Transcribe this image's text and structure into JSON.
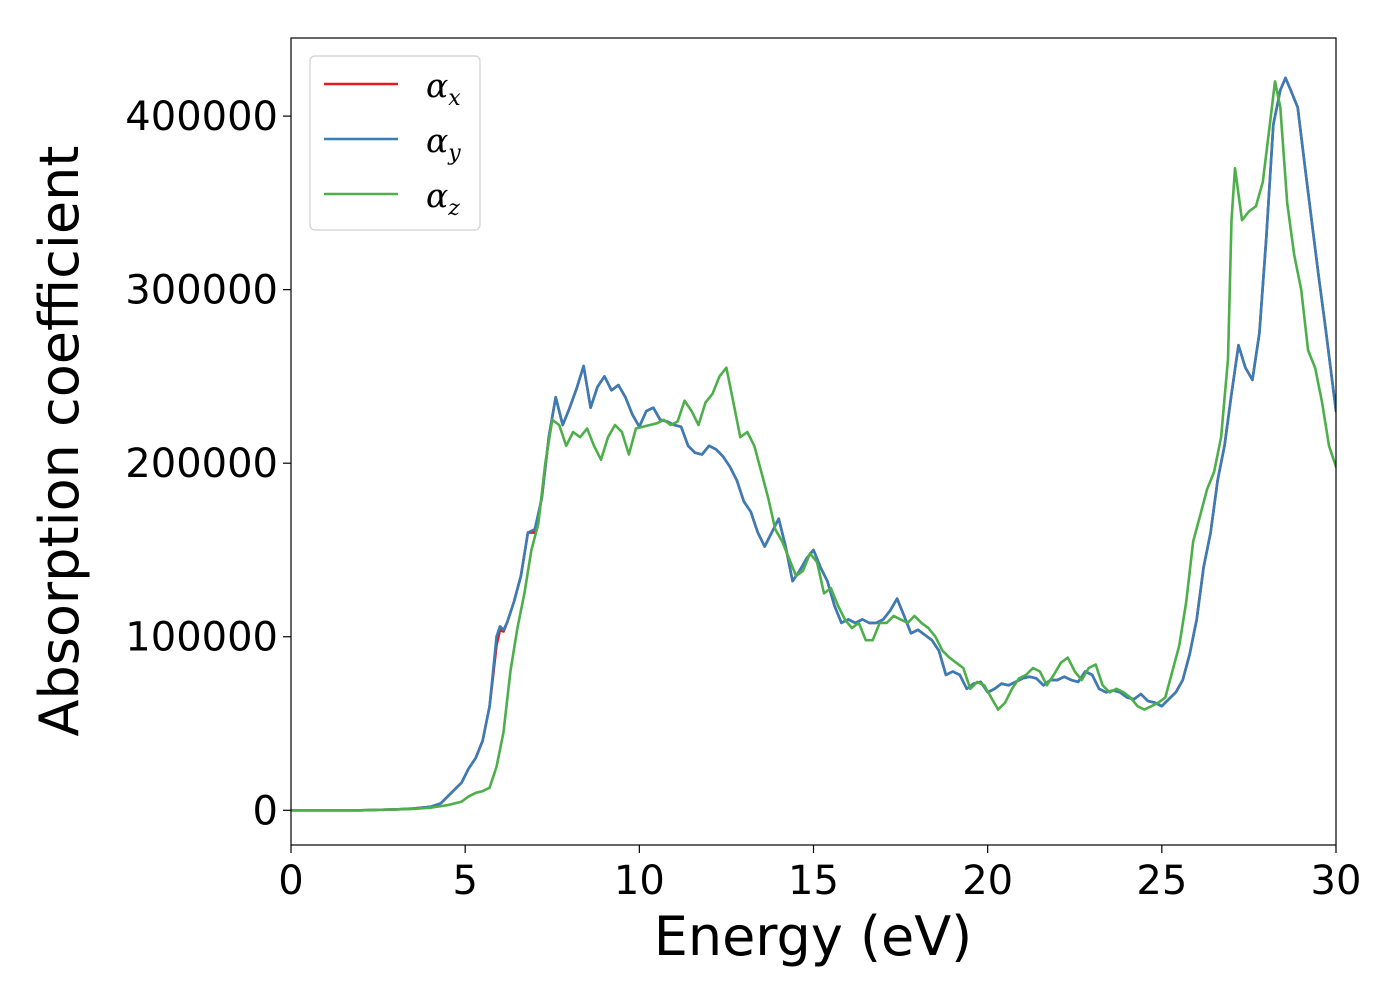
{
  "chart_data": {
    "type": "line",
    "xlabel": "Energy (eV)",
    "ylabel": "Absorption coefficient",
    "xlim": [
      0,
      30
    ],
    "ylim": [
      -20000,
      445000
    ],
    "xticks": [
      0,
      5,
      10,
      15,
      20,
      25,
      30
    ],
    "yticks": [
      0,
      100000,
      200000,
      300000,
      400000
    ],
    "grid": false,
    "legend_position": "top-left",
    "series": [
      {
        "name": "αx",
        "legend_base": "α",
        "legend_sub": "x",
        "color": "#e41a1c",
        "x": [
          0,
          1,
          2,
          3,
          3.5,
          4,
          4.3,
          4.6,
          4.9,
          5.1,
          5.3,
          5.5,
          5.7,
          5.9,
          6.0,
          6.1,
          6.2,
          6.4,
          6.6,
          6.8,
          7.0,
          7.2,
          7.4,
          7.6,
          7.8,
          8.0,
          8.2,
          8.4,
          8.6,
          8.8,
          9.0,
          9.2,
          9.4,
          9.6,
          9.8,
          10.0,
          10.2,
          10.4,
          10.6,
          10.8,
          11.0,
          11.2,
          11.4,
          11.6,
          11.8,
          12.0,
          12.2,
          12.4,
          12.6,
          12.8,
          13.0,
          13.2,
          13.4,
          13.6,
          13.8,
          14.0,
          14.2,
          14.4,
          14.6,
          14.8,
          15.0,
          15.2,
          15.4,
          15.6,
          15.8,
          16.0,
          16.2,
          16.4,
          16.6,
          16.8,
          17.0,
          17.2,
          17.4,
          17.6,
          17.8,
          18.0,
          18.2,
          18.4,
          18.6,
          18.8,
          19.0,
          19.2,
          19.4,
          19.6,
          19.8,
          20.0,
          20.2,
          20.4,
          20.6,
          20.8,
          21.0,
          21.2,
          21.4,
          21.6,
          21.8,
          22.0,
          22.2,
          22.4,
          22.6,
          22.8,
          23.0,
          23.2,
          23.4,
          23.6,
          23.8,
          24.0,
          24.2,
          24.4,
          24.6,
          24.8,
          25.0,
          25.2,
          25.4,
          25.6,
          25.8,
          26.0,
          26.2,
          26.4,
          26.6,
          26.8,
          27.0,
          27.2,
          27.4,
          27.6,
          27.8,
          28.0,
          28.2,
          28.4,
          28.55,
          28.7,
          28.9,
          29.1,
          29.3,
          29.5,
          29.7,
          30.0
        ],
        "y": [
          0,
          0,
          0,
          500,
          1000,
          2000,
          4000,
          10000,
          16000,
          24000,
          30000,
          40000,
          60000,
          95000,
          104000,
          103000,
          108000,
          120000,
          135000,
          160000,
          160000,
          180000,
          215000,
          238000,
          222000,
          232000,
          243000,
          256000,
          232000,
          244000,
          250000,
          242000,
          245000,
          238000,
          228000,
          221000,
          230000,
          232000,
          225000,
          224000,
          222000,
          221000,
          210000,
          206000,
          205000,
          210000,
          208000,
          204000,
          198000,
          190000,
          178000,
          172000,
          160000,
          152000,
          160000,
          168000,
          152000,
          132000,
          138000,
          145000,
          150000,
          140000,
          132000,
          118000,
          108000,
          110000,
          108000,
          110000,
          108000,
          108000,
          110000,
          115000,
          122000,
          112000,
          102000,
          104000,
          101000,
          98000,
          92000,
          78000,
          80000,
          78000,
          70000,
          73000,
          74000,
          68000,
          70000,
          73000,
          72000,
          74000,
          76000,
          77000,
          76000,
          72000,
          75000,
          75000,
          77000,
          75000,
          74000,
          80000,
          78000,
          70000,
          68000,
          69000,
          68000,
          65000,
          64000,
          67000,
          63000,
          62000,
          60000,
          64000,
          68000,
          75000,
          90000,
          110000,
          140000,
          160000,
          190000,
          210000,
          240000,
          268000,
          255000,
          248000,
          275000,
          330000,
          395000,
          415000,
          422000,
          415000,
          405000,
          372000,
          340000,
          308000,
          278000,
          230000
        ]
      },
      {
        "name": "αy",
        "legend_base": "α",
        "legend_sub": "y",
        "color": "#377eb8",
        "x": [
          0,
          1,
          2,
          3,
          3.5,
          4,
          4.3,
          4.6,
          4.9,
          5.1,
          5.3,
          5.5,
          5.7,
          5.9,
          6.0,
          6.1,
          6.2,
          6.4,
          6.6,
          6.8,
          7.0,
          7.2,
          7.4,
          7.6,
          7.8,
          8.0,
          8.2,
          8.4,
          8.6,
          8.8,
          9.0,
          9.2,
          9.4,
          9.6,
          9.8,
          10.0,
          10.2,
          10.4,
          10.6,
          10.8,
          11.0,
          11.2,
          11.4,
          11.6,
          11.8,
          12.0,
          12.2,
          12.4,
          12.6,
          12.8,
          13.0,
          13.2,
          13.4,
          13.6,
          13.8,
          14.0,
          14.2,
          14.4,
          14.6,
          14.8,
          15.0,
          15.2,
          15.4,
          15.6,
          15.8,
          16.0,
          16.2,
          16.4,
          16.6,
          16.8,
          17.0,
          17.2,
          17.4,
          17.6,
          17.8,
          18.0,
          18.2,
          18.4,
          18.6,
          18.8,
          19.0,
          19.2,
          19.4,
          19.6,
          19.8,
          20.0,
          20.2,
          20.4,
          20.6,
          20.8,
          21.0,
          21.2,
          21.4,
          21.6,
          21.8,
          22.0,
          22.2,
          22.4,
          22.6,
          22.8,
          23.0,
          23.2,
          23.4,
          23.6,
          23.8,
          24.0,
          24.2,
          24.4,
          24.6,
          24.8,
          25.0,
          25.2,
          25.4,
          25.6,
          25.8,
          26.0,
          26.2,
          26.4,
          26.6,
          26.8,
          27.0,
          27.2,
          27.4,
          27.6,
          27.8,
          28.0,
          28.2,
          28.4,
          28.55,
          28.7,
          28.9,
          29.1,
          29.3,
          29.5,
          29.7,
          30.0
        ],
        "y": [
          0,
          0,
          0,
          500,
          1000,
          2000,
          4000,
          10000,
          16000,
          24000,
          30000,
          40000,
          60000,
          100000,
          106000,
          104000,
          108000,
          120000,
          135000,
          160000,
          162000,
          180000,
          215000,
          238000,
          222000,
          232000,
          243000,
          256000,
          232000,
          244000,
          250000,
          242000,
          245000,
          238000,
          228000,
          221000,
          230000,
          232000,
          225000,
          224000,
          222000,
          221000,
          210000,
          206000,
          205000,
          210000,
          208000,
          204000,
          198000,
          190000,
          178000,
          172000,
          160000,
          152000,
          160000,
          168000,
          152000,
          132000,
          138000,
          145000,
          150000,
          140000,
          132000,
          118000,
          108000,
          110000,
          108000,
          110000,
          108000,
          108000,
          110000,
          115000,
          122000,
          112000,
          102000,
          104000,
          101000,
          98000,
          92000,
          78000,
          80000,
          78000,
          70000,
          73000,
          74000,
          68000,
          70000,
          73000,
          72000,
          74000,
          76000,
          77000,
          76000,
          72000,
          75000,
          75000,
          77000,
          75000,
          74000,
          80000,
          78000,
          70000,
          68000,
          69000,
          68000,
          65000,
          64000,
          67000,
          63000,
          62000,
          60000,
          64000,
          68000,
          75000,
          90000,
          110000,
          140000,
          160000,
          190000,
          210000,
          240000,
          268000,
          255000,
          248000,
          275000,
          330000,
          395000,
          415000,
          422000,
          415000,
          405000,
          372000,
          340000,
          308000,
          278000,
          230000
        ]
      },
      {
        "name": "αz",
        "legend_base": "α",
        "legend_sub": "z",
        "color": "#4daf4a",
        "x": [
          0,
          1,
          2,
          3,
          3.5,
          4,
          4.5,
          4.9,
          5.1,
          5.3,
          5.5,
          5.7,
          5.9,
          6.1,
          6.3,
          6.5,
          6.7,
          6.9,
          7.1,
          7.3,
          7.5,
          7.7,
          7.9,
          8.1,
          8.3,
          8.5,
          8.7,
          8.9,
          9.1,
          9.3,
          9.5,
          9.7,
          9.9,
          10.1,
          10.3,
          10.5,
          10.7,
          10.9,
          11.1,
          11.3,
          11.5,
          11.7,
          11.9,
          12.1,
          12.3,
          12.5,
          12.7,
          12.9,
          13.1,
          13.3,
          13.5,
          13.7,
          13.9,
          14.1,
          14.3,
          14.5,
          14.7,
          14.9,
          15.1,
          15.3,
          15.5,
          15.7,
          15.9,
          16.1,
          16.3,
          16.5,
          16.7,
          16.9,
          17.1,
          17.3,
          17.5,
          17.7,
          17.9,
          18.1,
          18.3,
          18.5,
          18.7,
          18.9,
          19.1,
          19.3,
          19.5,
          19.7,
          19.9,
          20.1,
          20.3,
          20.5,
          20.7,
          20.9,
          21.1,
          21.3,
          21.5,
          21.7,
          21.9,
          22.1,
          22.3,
          22.5,
          22.7,
          22.9,
          23.1,
          23.3,
          23.5,
          23.7,
          23.9,
          24.1,
          24.3,
          24.5,
          24.7,
          24.9,
          25.1,
          25.3,
          25.5,
          25.7,
          25.9,
          26.1,
          26.3,
          26.5,
          26.7,
          26.9,
          27.0,
          27.1,
          27.3,
          27.5,
          27.7,
          27.9,
          28.1,
          28.25,
          28.4,
          28.6,
          28.8,
          29.0,
          29.2,
          29.4,
          29.6,
          29.8,
          30.0
        ],
        "y": [
          0,
          0,
          0,
          500,
          800,
          1500,
          3000,
          5000,
          8000,
          10000,
          11000,
          13000,
          25000,
          45000,
          80000,
          105000,
          125000,
          150000,
          165000,
          200000,
          225000,
          222000,
          210000,
          218000,
          215000,
          220000,
          210000,
          202000,
          215000,
          222000,
          218000,
          205000,
          220000,
          221000,
          222000,
          223000,
          225000,
          222000,
          224000,
          236000,
          230000,
          222000,
          235000,
          240000,
          250000,
          255000,
          235000,
          215000,
          218000,
          210000,
          195000,
          180000,
          162000,
          155000,
          145000,
          135000,
          138000,
          148000,
          143000,
          125000,
          128000,
          118000,
          110000,
          105000,
          108000,
          98000,
          98000,
          108000,
          108000,
          112000,
          110000,
          108000,
          112000,
          108000,
          105000,
          100000,
          92000,
          88000,
          85000,
          82000,
          70000,
          74000,
          72000,
          65000,
          58000,
          62000,
          70000,
          76000,
          78000,
          82000,
          80000,
          72000,
          78000,
          85000,
          88000,
          80000,
          75000,
          82000,
          84000,
          72000,
          68000,
          70000,
          68000,
          65000,
          60000,
          58000,
          60000,
          62000,
          65000,
          80000,
          95000,
          120000,
          155000,
          170000,
          185000,
          195000,
          215000,
          260000,
          340000,
          370000,
          340000,
          345000,
          348000,
          362000,
          395000,
          420000,
          405000,
          350000,
          320000,
          300000,
          265000,
          255000,
          235000,
          210000,
          198000
        ]
      }
    ]
  }
}
